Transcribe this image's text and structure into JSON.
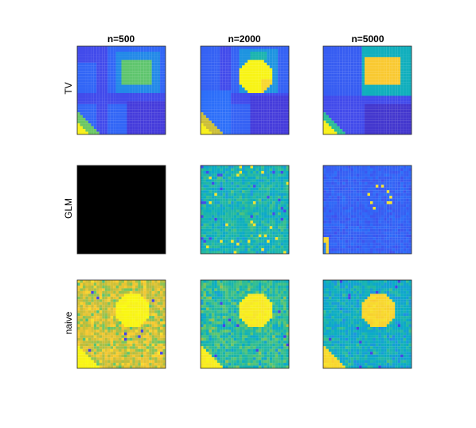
{
  "chart_data": {
    "type": "heatmap",
    "grid": {
      "rows": 3,
      "cols": 3
    },
    "column_titles": [
      "n=500",
      "n=2000",
      "n=5000"
    ],
    "row_labels": [
      "TV",
      "GLM",
      "naive"
    ],
    "colormap": "parula",
    "colors": {
      "parula_stops": [
        "#3e26a8",
        "#4742e8",
        "#2d6ff9",
        "#1e94e0",
        "#0aacc6",
        "#2bbc97",
        "#6cc764",
        "#c1bd3a",
        "#f9c931",
        "#f7e42a",
        "#f9fb0e"
      ],
      "empty_panel": "#000000",
      "frame": "#262626"
    },
    "panels": [
      {
        "row": "TV",
        "col": "n=500",
        "description": "piecewise-constant blocks"
      },
      {
        "row": "TV",
        "col": "n=2000",
        "description": "piecewise-constant blocks"
      },
      {
        "row": "TV",
        "col": "n=5000",
        "description": "piecewise-constant blocks"
      },
      {
        "row": "GLM",
        "col": "n=500",
        "description": "all black"
      },
      {
        "row": "GLM",
        "col": "n=2000",
        "description": "noisy teal field"
      },
      {
        "row": "GLM",
        "col": "n=5000",
        "description": "dark blue field with sparse yellow pixels"
      },
      {
        "row": "naive",
        "col": "n=500",
        "description": "noisy yellow field"
      },
      {
        "row": "naive",
        "col": "n=2000",
        "description": "noisy mixed field"
      },
      {
        "row": "naive",
        "col": "n=5000",
        "description": "noisy blue field"
      }
    ]
  }
}
